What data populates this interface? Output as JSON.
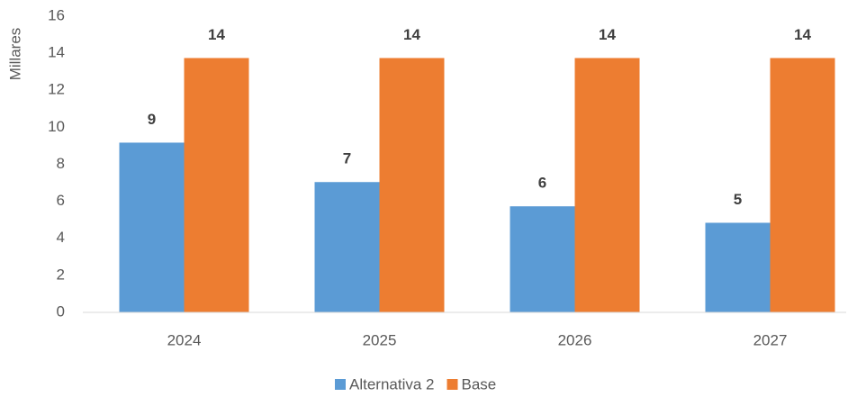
{
  "chart_data": {
    "type": "bar",
    "y_label": "Millares",
    "categories": [
      "2024",
      "2025",
      "2026",
      "2027"
    ],
    "series": [
      {
        "name": "Alternativa 2",
        "color": "#5b9bd5",
        "values": [
          9.17,
          7.04,
          5.73,
          4.84
        ],
        "value_labels": [
          "9",
          "7",
          "6",
          "5"
        ]
      },
      {
        "name": "Base",
        "color": "#ed7d31",
        "values": [
          13.74,
          13.74,
          13.74,
          13.74
        ],
        "value_labels": [
          "14",
          "14",
          "14",
          "14"
        ]
      }
    ],
    "ylim": [
      0,
      16
    ],
    "yticks": [
      0,
      2,
      4,
      6,
      8,
      10,
      12,
      14,
      16
    ],
    "grid": false
  }
}
